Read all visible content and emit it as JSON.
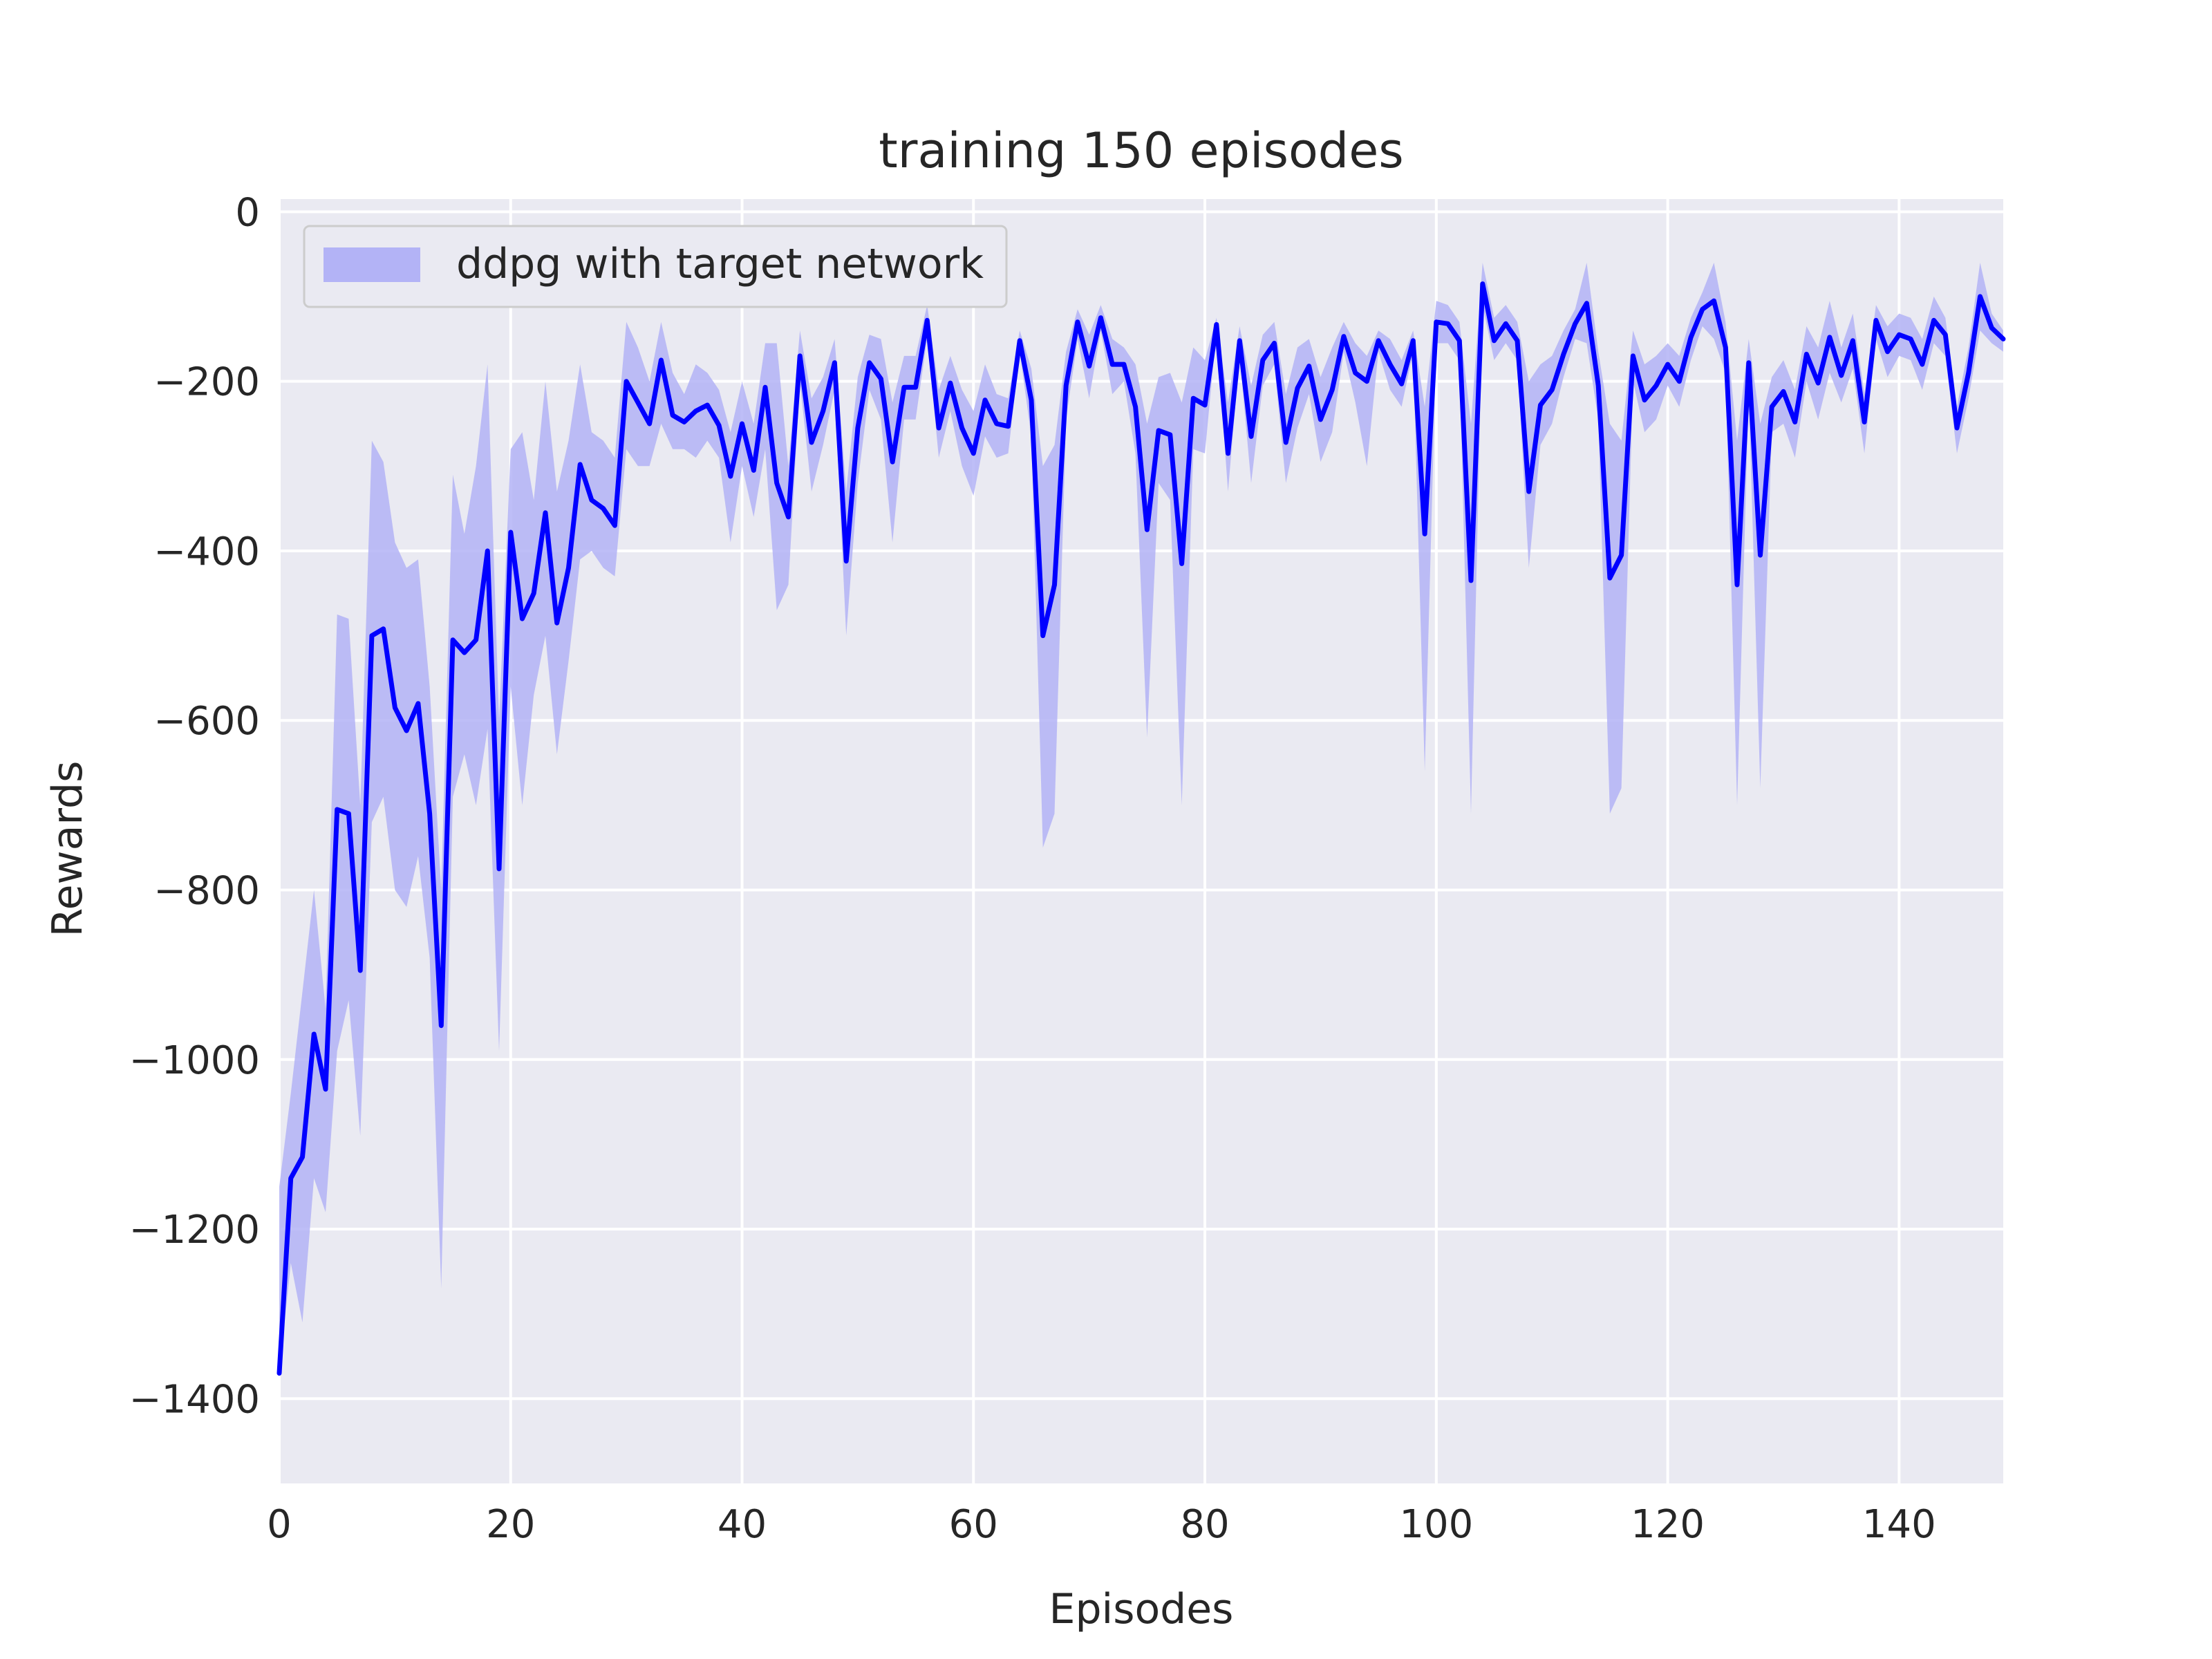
{
  "chart_data": {
    "type": "line",
    "title": "training 150 episodes",
    "xlabel": "Episodes",
    "ylabel": "Rewards",
    "xlim": [
      0,
      149
    ],
    "ylim": [
      -1500,
      15
    ],
    "x_ticks": [
      0,
      20,
      40,
      60,
      80,
      100,
      120,
      140
    ],
    "y_ticks": [
      0,
      -200,
      -400,
      -600,
      -800,
      -1000,
      -1200,
      -1400
    ],
    "x_tick_labels": [
      "0",
      "20",
      "40",
      "60",
      "80",
      "100",
      "120",
      "140"
    ],
    "y_tick_labels": [
      "0",
      "−200",
      "−400",
      "−600",
      "−800",
      "−1000",
      "−1200",
      "−1400"
    ],
    "grid": true,
    "legend": "upper left",
    "colors": {
      "line": "#0000ff",
      "band": "#b3b3f6",
      "background": "#eaeaf2",
      "grid": "#ffffff"
    },
    "series": [
      {
        "name": "ddpg with target network",
        "x": [
          0,
          1,
          2,
          3,
          4,
          5,
          6,
          7,
          8,
          9,
          10,
          11,
          12,
          13,
          14,
          15,
          16,
          17,
          18,
          19,
          20,
          21,
          22,
          23,
          24,
          25,
          26,
          27,
          28,
          29,
          30,
          31,
          32,
          33,
          34,
          35,
          36,
          37,
          38,
          39,
          40,
          41,
          42,
          43,
          44,
          45,
          46,
          47,
          48,
          49,
          50,
          51,
          52,
          53,
          54,
          55,
          56,
          57,
          58,
          59,
          60,
          61,
          62,
          63,
          64,
          65,
          66,
          67,
          68,
          69,
          70,
          71,
          72,
          73,
          74,
          75,
          76,
          77,
          78,
          79,
          80,
          81,
          82,
          83,
          84,
          85,
          86,
          87,
          88,
          89,
          90,
          91,
          92,
          93,
          94,
          95,
          96,
          97,
          98,
          99,
          100,
          101,
          102,
          103,
          104,
          105,
          106,
          107,
          108,
          109,
          110,
          111,
          112,
          113,
          114,
          115,
          116,
          117,
          118,
          119,
          120,
          121,
          122,
          123,
          124,
          125,
          126,
          127,
          128,
          129,
          130,
          131,
          132,
          133,
          134,
          135,
          136,
          137,
          138,
          139,
          140,
          141,
          142,
          143,
          144,
          145,
          146,
          147,
          148,
          149
        ],
        "y": [
          -1370,
          -1140,
          -1115,
          -970,
          -1035,
          -705,
          -710,
          -895,
          -500,
          -492,
          -585,
          -612,
          -580,
          -710,
          -960,
          -505,
          -520,
          -505,
          -400,
          -775,
          -378,
          -480,
          -450,
          -355,
          -485,
          -420,
          -298,
          -340,
          -350,
          -370,
          -200,
          -225,
          -250,
          -175,
          -240,
          -248,
          -235,
          -228,
          -252,
          -312,
          -250,
          -305,
          -207,
          -320,
          -360,
          -170,
          -272,
          -235,
          -178,
          -412,
          -255,
          -178,
          -197,
          -295,
          -207,
          -207,
          -128,
          -255,
          -202,
          -255,
          -285,
          -222,
          -250,
          -253,
          -152,
          -222,
          -500,
          -440,
          -205,
          -130,
          -182,
          -125,
          -180,
          -180,
          -230,
          -375,
          -258,
          -263,
          -415,
          -220,
          -228,
          -133,
          -285,
          -152,
          -265,
          -175,
          -155,
          -272,
          -208,
          -182,
          -245,
          -210,
          -147,
          -190,
          -200,
          -152,
          -180,
          -203,
          -152,
          -380,
          -130,
          -132,
          -152,
          -435,
          -85,
          -152,
          -132,
          -152,
          -330,
          -228,
          -210,
          -168,
          -132,
          -108,
          -205,
          -432,
          -405,
          -170,
          -222,
          -205,
          -180,
          -200,
          -148,
          -115,
          -105,
          -160,
          -440,
          -178,
          -405,
          -230,
          -212,
          -248,
          -168,
          -202,
          -148,
          -193,
          -152,
          -248,
          -128,
          -165,
          -145,
          -150,
          -180,
          -128,
          -145,
          -255,
          -190,
          -100,
          -137,
          -150
        ],
        "y_upper": [
          -1150,
          -1040,
          -920,
          -800,
          -940,
          -475,
          -480,
          -700,
          -270,
          -295,
          -390,
          -420,
          -410,
          -560,
          -800,
          -310,
          -380,
          -300,
          -180,
          -600,
          -280,
          -260,
          -340,
          -200,
          -330,
          -270,
          -180,
          -260,
          -270,
          -290,
          -130,
          -160,
          -200,
          -130,
          -190,
          -215,
          -180,
          -190,
          -210,
          -260,
          -200,
          -250,
          -155,
          -155,
          -300,
          -140,
          -220,
          -195,
          -150,
          -330,
          -195,
          -145,
          -150,
          -225,
          -170,
          -170,
          -110,
          -210,
          -170,
          -210,
          -235,
          -180,
          -215,
          -220,
          -140,
          -185,
          -300,
          -275,
          -165,
          -115,
          -145,
          -110,
          -150,
          -160,
          -180,
          -250,
          -195,
          -190,
          -225,
          -160,
          -175,
          -125,
          -225,
          -135,
          -205,
          -145,
          -130,
          -215,
          -160,
          -150,
          -195,
          -160,
          -130,
          -155,
          -170,
          -140,
          -150,
          -175,
          -140,
          -230,
          -105,
          -110,
          -130,
          -250,
          -60,
          -125,
          -110,
          -130,
          -200,
          -180,
          -170,
          -140,
          -115,
          -60,
          -165,
          -250,
          -270,
          -140,
          -180,
          -170,
          -155,
          -170,
          -125,
          -95,
          -60,
          -130,
          -270,
          -150,
          -250,
          -195,
          -175,
          -210,
          -135,
          -160,
          -105,
          -160,
          -120,
          -215,
          -110,
          -135,
          -120,
          -125,
          -150,
          -100,
          -125,
          -230,
          -160,
          -60,
          -120,
          -140
        ],
        "y_lower": [
          -1370,
          -1240,
          -1310,
          -1140,
          -1180,
          -990,
          -930,
          -1090,
          -720,
          -690,
          -800,
          -820,
          -760,
          -880,
          -1270,
          -690,
          -640,
          -700,
          -610,
          -990,
          -560,
          -700,
          -570,
          -500,
          -640,
          -530,
          -410,
          -400,
          -420,
          -430,
          -280,
          -300,
          -300,
          -250,
          -280,
          -280,
          -290,
          -270,
          -290,
          -390,
          -300,
          -360,
          -280,
          -470,
          -440,
          -200,
          -330,
          -275,
          -210,
          -500,
          -320,
          -210,
          -245,
          -390,
          -245,
          -245,
          -148,
          -290,
          -235,
          -300,
          -335,
          -265,
          -290,
          -285,
          -165,
          -265,
          -750,
          -710,
          -245,
          -150,
          -220,
          -140,
          -215,
          -200,
          -285,
          -620,
          -320,
          -340,
          -700,
          -280,
          -285,
          -140,
          -330,
          -170,
          -320,
          -205,
          -180,
          -320,
          -255,
          -215,
          -295,
          -260,
          -165,
          -225,
          -300,
          -165,
          -210,
          -230,
          -165,
          -660,
          -155,
          -155,
          -175,
          -710,
          -110,
          -175,
          -155,
          -175,
          -420,
          -275,
          -250,
          -195,
          -150,
          -155,
          -245,
          -710,
          -680,
          -200,
          -260,
          -245,
          -205,
          -230,
          -175,
          -135,
          -150,
          -190,
          -700,
          -210,
          -680,
          -260,
          -250,
          -290,
          -200,
          -245,
          -190,
          -225,
          -185,
          -285,
          -150,
          -195,
          -170,
          -175,
          -210,
          -155,
          -170,
          -285,
          -220,
          -140,
          -155,
          -165
        ]
      }
    ]
  }
}
